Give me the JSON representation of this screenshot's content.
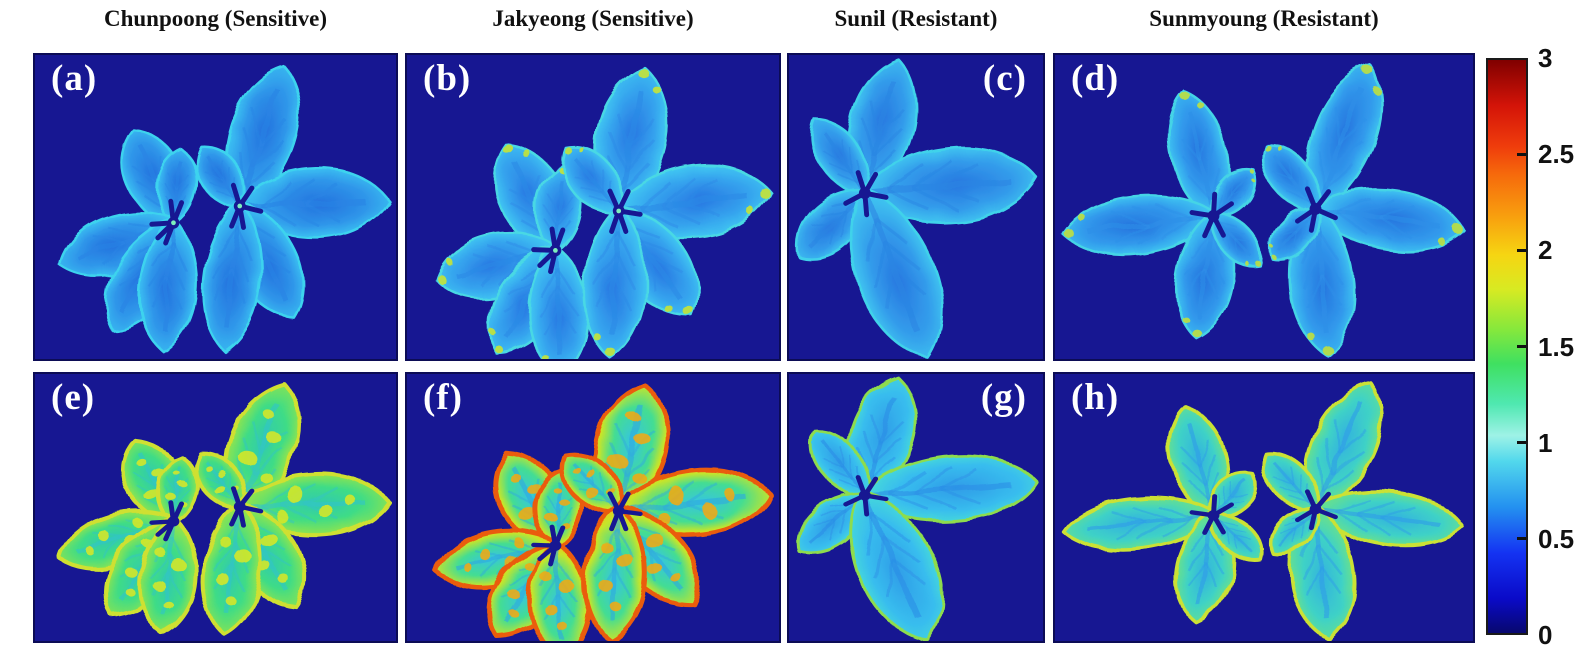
{
  "figure": {
    "column_titles": [
      "Chunpoong (Sensitive)",
      "Jakyeong (Sensitive)",
      "Sunil (Resistant)",
      "Sunmyoung (Resistant)"
    ]
  },
  "colors": {
    "page_bg": "#ffffff",
    "panel_bg": "#171792",
    "panel_border": "#0c0c55",
    "title_color": "#111111",
    "panel_label_color": "#ffffff",
    "colorbar_border": "#1a1a1a",
    "tick_label_color": "#111111"
  },
  "chart_data": {
    "type": "heatmap",
    "description": "Eight false-color (jet colormap) index images of ginseng compound leaves on a dark navy background; four cultivar columns x two rows of panels sharing one vertical colorbar scaled 0-3.",
    "colormap": "jet",
    "colorbar": {
      "min": 0,
      "max": 3,
      "ticks": [
        3,
        2.5,
        2,
        1.5,
        1,
        0.5,
        0
      ],
      "tick_side": "right",
      "gradient_stops": [
        [
          0,
          "#08086e"
        ],
        [
          0.06,
          "#0a0ac8"
        ],
        [
          0.14,
          "#1433f2"
        ],
        [
          0.22,
          "#2491f0"
        ],
        [
          0.3,
          "#52d8ec"
        ],
        [
          0.345,
          "#9ef2e6"
        ],
        [
          0.4,
          "#4fe8b0"
        ],
        [
          0.47,
          "#3fe060"
        ],
        [
          0.53,
          "#86e83c"
        ],
        [
          0.6,
          "#d8ea22"
        ],
        [
          0.66,
          "#f6d512"
        ],
        [
          0.73,
          "#f89d0e"
        ],
        [
          0.8,
          "#f66a0c"
        ],
        [
          0.85,
          "#ef3c0c"
        ],
        [
          0.92,
          "#d41408"
        ],
        [
          1,
          "#800000"
        ]
      ]
    },
    "panels": [
      {
        "label": "(a)",
        "cultivar": "Chunpoong",
        "phenotype": "Sensitive",
        "col": 0,
        "row": 0,
        "label_position": "top-left",
        "approx_value_range": "0.7-1.0",
        "appearance": "uniform light-blue leaves, cyan margins",
        "palette": {
          "stops": [
            [
              0,
              "#2472de"
            ],
            [
              0.5,
              "#2f97ea"
            ],
            [
              0.82,
              "#3cc3f2"
            ],
            [
              1,
              "#40d2ec"
            ]
          ],
          "stroke": "#3ed3ee",
          "stroke_width": 2.5,
          "vein": "#2a84e4",
          "center_dot": "#7df0bc",
          "speck": null,
          "speck_mode": null
        }
      },
      {
        "label": "(b)",
        "cultivar": "Jakyeong",
        "phenotype": "Sensitive",
        "col": 1,
        "row": 0,
        "label_position": "top-left",
        "approx_value_range": "0.8-1.1",
        "appearance": "light-blue leaves with scattered yellow-green flecks on margins",
        "palette": {
          "stops": [
            [
              0,
              "#2877e2"
            ],
            [
              0.5,
              "#35a3ee"
            ],
            [
              0.82,
              "#41c9f2"
            ],
            [
              1,
              "#48dae2"
            ]
          ],
          "stroke": "#48d8e4",
          "stroke_width": 2.5,
          "vein": "#2c8ae6",
          "center_dot": "#7df0bc",
          "speck": "#c6e436",
          "speck_mode": "tips"
        }
      },
      {
        "label": "(c)",
        "cultivar": "Sunil",
        "phenotype": "Resistant",
        "col": 2,
        "row": 0,
        "label_position": "top-right",
        "approx_value_range": "0.7-1.0",
        "appearance": "uniform light-blue compound leaf",
        "palette": {
          "stops": [
            [
              0,
              "#2777e0"
            ],
            [
              0.5,
              "#339ceb"
            ],
            [
              0.82,
              "#40c6f0"
            ],
            [
              1,
              "#41d4e8"
            ]
          ],
          "stroke": "#40d2ea",
          "stroke_width": 2.5,
          "vein": "#2b86e2",
          "center_dot": null,
          "speck": null,
          "speck_mode": null
        }
      },
      {
        "label": "(d)",
        "cultivar": "Sunmyoung",
        "phenotype": "Resistant",
        "col": 3,
        "row": 0,
        "label_position": "top-left",
        "approx_value_range": "0.7-1.0",
        "appearance": "two light-blue/cyan compound leaves with fine cyan vein texture",
        "palette": {
          "stops": [
            [
              0,
              "#2674de"
            ],
            [
              0.5,
              "#3199ec"
            ],
            [
              0.82,
              "#3fc5f1"
            ],
            [
              1,
              "#45d6e6"
            ]
          ],
          "stroke": "#44d4e6",
          "stroke_width": 2.5,
          "vein": "#2f90e8",
          "center_dot": null,
          "speck": "#bfe040",
          "speck_mode": "tips"
        }
      },
      {
        "label": "(e)",
        "cultivar": "Chunpoong",
        "phenotype": "Sensitive",
        "col": 0,
        "row": 1,
        "label_position": "top-left",
        "approx_value_range": "1.2-1.6 body, 1.8-2.0 margins",
        "appearance": "green leaves with yellow patches and yellow margins",
        "palette": {
          "stops": [
            [
              0,
              "#2fc9b4"
            ],
            [
              0.45,
              "#3fdc86"
            ],
            [
              0.78,
              "#8fe44e"
            ],
            [
              1,
              "#d2e334"
            ]
          ],
          "stroke": "#cfe030",
          "stroke_width": 4,
          "vein": "#32c4c8",
          "center_dot": null,
          "speck": "#dce824",
          "speck_mode": "patches"
        }
      },
      {
        "label": "(f)",
        "cultivar": "Jakyeong",
        "phenotype": "Sensitive",
        "col": 1,
        "row": 1,
        "label_position": "top-left",
        "approx_value_range": "1.0-1.5 body, 2.0-2.8 margins",
        "appearance": "cyan-green leaves with strong yellow-orange-red margins",
        "palette": {
          "stops": [
            [
              0,
              "#35c4e2"
            ],
            [
              0.45,
              "#44dd92"
            ],
            [
              0.72,
              "#c6e52a"
            ],
            [
              0.88,
              "#f6c312"
            ],
            [
              1,
              "#f07410"
            ]
          ],
          "stroke": "#ea5c10",
          "stroke_width": 4.5,
          "vein": "#2fa8e0",
          "center_dot": null,
          "speck": "#f6a911",
          "speck_mode": "patches"
        }
      },
      {
        "label": "(g)",
        "cultivar": "Sunil",
        "phenotype": "Resistant",
        "col": 2,
        "row": 1,
        "label_position": "top-right",
        "approx_value_range": "0.9-1.2, 1.5-1.8 lower margins",
        "appearance": "cyan-blue leaf with yellow-green edging on lower/right leaflets",
        "palette": {
          "stops": [
            [
              0,
              "#2f9ce8"
            ],
            [
              0.55,
              "#38bdee"
            ],
            [
              0.82,
              "#46d8da"
            ],
            [
              1,
              "#57dfae"
            ]
          ],
          "stroke": "#8edc4e",
          "stroke_width": 3,
          "vein": "#2c8ee6",
          "center_dot": null,
          "speck": null,
          "speck_mode": null
        }
      },
      {
        "label": "(h)",
        "cultivar": "Sunmyoung",
        "phenotype": "Resistant",
        "col": 3,
        "row": 1,
        "label_position": "top-left",
        "approx_value_range": "1.0-1.4, 1.5-2.0 margins",
        "appearance": "cyan leaves with green-yellow margins and blue veins",
        "palette": {
          "stops": [
            [
              0,
              "#32b2e0"
            ],
            [
              0.5,
              "#3fd2c6"
            ],
            [
              0.8,
              "#68e08c"
            ],
            [
              1,
              "#b6e243"
            ]
          ],
          "stroke": "#cbe136",
          "stroke_width": 3.5,
          "vein": "#2e9ce8",
          "center_dot": null,
          "speck": null,
          "speck_mode": null
        }
      }
    ]
  }
}
